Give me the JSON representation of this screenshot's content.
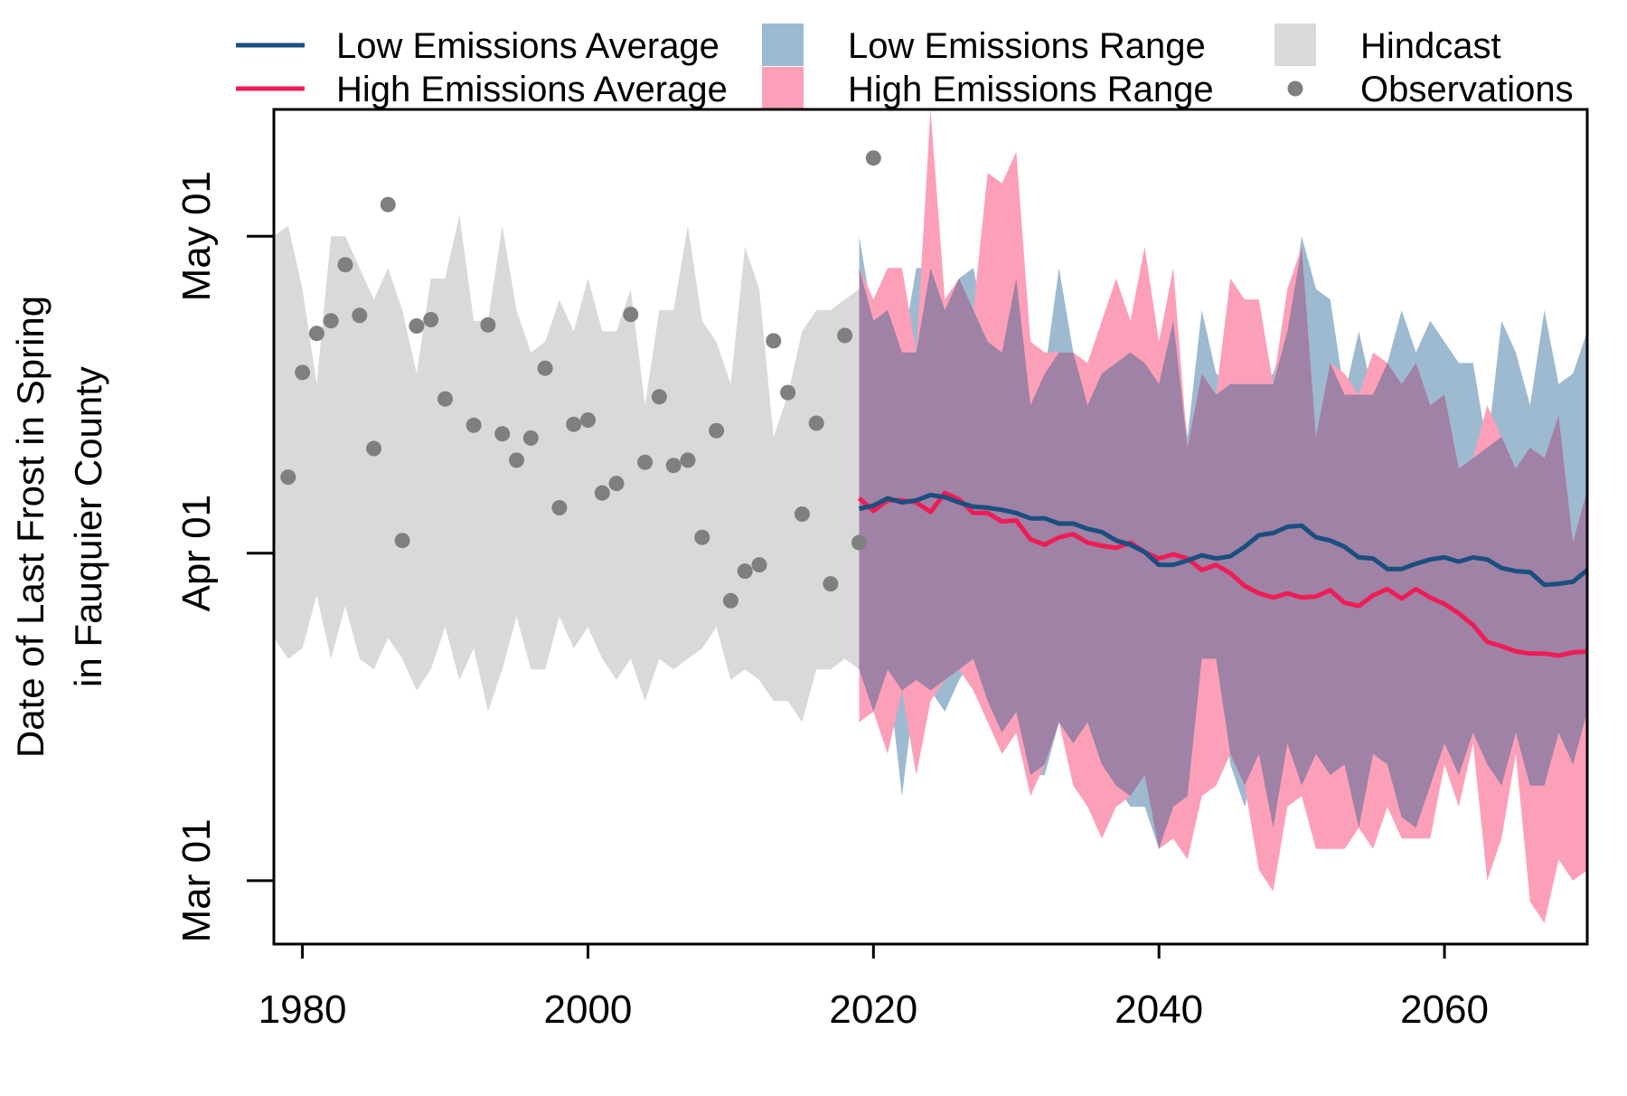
{
  "chart_data": {
    "type": "line",
    "title": "",
    "xlabel": "",
    "ylabel_lines": [
      "Date of Last Frost in Spring",
      "in Fauquier County"
    ],
    "xlim": [
      1978,
      2070
    ],
    "x_ticks": [
      1980,
      2000,
      2020,
      2040,
      2060
    ],
    "x_tick_labels": [
      "1980",
      "2000",
      "2020",
      "2040",
      "2060"
    ],
    "y_unit": "day of year",
    "ylim": [
      54,
      133
    ],
    "y_ticks": [
      60,
      91,
      121
    ],
    "y_tick_labels": [
      "Mar 01",
      "Apr 01",
      "May 01"
    ],
    "grid": false,
    "legend": {
      "placement": "top",
      "items": [
        {
          "key": "low_avg",
          "label": "Low Emissions Average",
          "kind": "line",
          "color": "#1a4f7f"
        },
        {
          "key": "high_avg",
          "label": "High Emissions Average",
          "kind": "line",
          "color": "#ee1d55"
        },
        {
          "key": "low_range",
          "label": "Low Emissions Range",
          "kind": "area",
          "color": "#9dbad0"
        },
        {
          "key": "high_range",
          "label": "High Emissions Range",
          "kind": "area",
          "color": "#fba0b8"
        },
        {
          "key": "hindcast",
          "label": "Hindcast",
          "kind": "area",
          "color": "#d9d9d9"
        },
        {
          "key": "obs",
          "label": "Observations",
          "kind": "point",
          "color": "#7f7f7f"
        }
      ]
    },
    "colors": {
      "low_avg": "#1a4f7f",
      "high_avg": "#ee1d55",
      "low_range": "#9dbad0",
      "high_range": "#fba0b8",
      "overlap": "#9f82a5",
      "hindcast": "#d9d9d9",
      "obs": "#7f7f7f"
    },
    "hindcast": {
      "x": [
        1978,
        1979,
        1980,
        1981,
        1982,
        1983,
        1984,
        1985,
        1986,
        1987,
        1988,
        1989,
        1990,
        1991,
        1992,
        1993,
        1994,
        1995,
        1996,
        1997,
        1998,
        1999,
        2000,
        2001,
        2002,
        2003,
        2004,
        2005,
        2006,
        2007,
        2008,
        2009,
        2010,
        2011,
        2012,
        2013,
        2014,
        2015,
        2016,
        2017,
        2018,
        2019
      ],
      "upper": [
        121,
        122,
        116,
        107,
        121,
        121,
        118,
        115,
        118,
        114,
        108,
        117,
        117,
        123,
        113,
        113,
        122,
        114,
        110,
        111,
        115,
        112,
        117,
        112,
        112,
        116,
        105,
        114,
        114,
        122,
        113,
        111,
        107,
        120,
        116,
        102,
        106,
        112,
        114,
        114,
        115,
        116
      ],
      "lower": [
        83,
        81,
        82,
        87,
        81,
        86,
        81,
        80,
        83,
        81,
        78,
        80,
        84,
        79,
        82,
        76,
        80,
        85,
        80,
        80,
        85,
        82,
        84,
        81,
        79,
        81,
        77,
        81,
        80,
        81,
        82,
        84,
        79,
        80,
        79,
        77,
        77,
        75,
        80,
        80,
        81,
        80
      ]
    },
    "low_range": {
      "x": [
        2019,
        2020,
        2021,
        2022,
        2023,
        2024,
        2025,
        2026,
        2027,
        2028,
        2029,
        2030,
        2031,
        2032,
        2033,
        2034,
        2035,
        2036,
        2037,
        2038,
        2039,
        2040,
        2041,
        2042,
        2043,
        2044,
        2045,
        2046,
        2047,
        2048,
        2049,
        2050,
        2051,
        2052,
        2053,
        2054,
        2055,
        2056,
        2057,
        2058,
        2059,
        2060,
        2061,
        2062,
        2063,
        2064,
        2065,
        2066,
        2067,
        2068,
        2069,
        2070
      ],
      "upper": [
        121,
        113,
        114,
        110,
        118,
        118,
        114,
        117,
        118,
        111,
        110,
        117,
        105,
        108,
        118,
        110,
        105,
        108,
        109,
        110,
        109,
        107,
        113,
        102,
        114,
        108,
        107,
        107,
        107,
        108,
        112,
        121,
        116,
        115,
        106,
        112,
        106,
        109,
        114,
        110,
        113,
        111,
        109,
        109,
        101,
        113,
        110,
        105,
        114,
        107,
        108,
        112
      ],
      "lower": [
        80,
        76,
        80,
        68,
        79,
        78,
        76,
        79,
        81,
        77,
        74,
        76,
        70,
        70,
        75,
        73,
        75,
        71,
        69,
        67,
        67,
        63,
        67,
        68,
        81,
        81,
        71,
        67,
        72,
        65,
        73,
        69,
        72,
        70,
        71,
        65,
        72,
        71,
        66,
        65,
        69,
        73,
        70,
        74,
        71,
        69,
        74,
        69,
        69,
        74,
        71,
        76
      ]
    },
    "high_range": {
      "x": [
        2019,
        2020,
        2021,
        2022,
        2023,
        2024,
        2025,
        2026,
        2027,
        2028,
        2029,
        2030,
        2031,
        2032,
        2033,
        2034,
        2035,
        2036,
        2037,
        2038,
        2039,
        2040,
        2041,
        2042,
        2043,
        2044,
        2045,
        2046,
        2047,
        2048,
        2049,
        2050,
        2051,
        2052,
        2053,
        2054,
        2055,
        2056,
        2057,
        2058,
        2059,
        2060,
        2061,
        2062,
        2063,
        2064,
        2065,
        2066,
        2067,
        2068,
        2069,
        2070
      ],
      "upper": [
        118,
        115,
        118,
        118,
        110,
        133,
        115,
        117,
        114,
        127,
        126,
        129,
        111,
        110,
        110,
        110,
        109,
        113,
        117,
        113,
        120,
        111,
        118,
        101,
        108,
        106,
        117,
        115,
        115,
        107,
        116,
        120,
        102,
        109,
        108,
        106,
        110,
        109,
        107,
        109,
        105,
        106,
        99,
        100,
        105,
        102,
        99,
        101,
        100,
        104,
        92,
        97
      ],
      "lower": [
        75,
        76,
        72,
        78,
        70,
        77,
        79,
        80,
        78,
        75,
        72,
        74,
        68,
        71,
        75,
        69,
        67,
        64,
        67,
        68,
        70,
        63,
        64,
        62,
        68,
        69,
        72,
        69,
        61,
        59,
        67,
        68,
        63,
        63,
        63,
        65,
        63,
        67,
        64,
        64,
        64,
        71,
        67,
        73,
        60,
        64,
        72,
        58,
        56,
        62,
        60,
        61
      ]
    },
    "low_avg": {
      "x": [
        2019,
        2020,
        2021,
        2022,
        2023,
        2024,
        2025,
        2026,
        2027,
        2028,
        2029,
        2030,
        2031,
        2032,
        2033,
        2034,
        2035,
        2036,
        2037,
        2038,
        2039,
        2040,
        2041,
        2042,
        2043,
        2044,
        2045,
        2046,
        2047,
        2048,
        2049,
        2050,
        2051,
        2052,
        2053,
        2054,
        2055,
        2056,
        2057,
        2058,
        2059,
        2060,
        2061,
        2062,
        2063,
        2064,
        2065,
        2066,
        2067,
        2068,
        2069,
        2070
      ],
      "values": [
        95.2,
        95.5,
        96.2,
        95.8,
        96.0,
        96.5,
        96.3,
        95.8,
        95.4,
        95.3,
        95.1,
        94.8,
        94.3,
        94.3,
        93.8,
        93.8,
        93.3,
        93.0,
        92.2,
        91.8,
        91.1,
        89.9,
        89.9,
        90.3,
        90.8,
        90.5,
        90.7,
        91.6,
        92.7,
        92.9,
        93.5,
        93.6,
        92.5,
        92.2,
        91.6,
        90.6,
        90.5,
        89.5,
        89.5,
        90.0,
        90.4,
        90.6,
        90.2,
        90.6,
        90.4,
        89.6,
        89.3,
        89.2,
        88.0,
        88.1,
        88.3,
        89.4
      ]
    },
    "high_avg": {
      "x": [
        2019,
        2020,
        2021,
        2022,
        2023,
        2024,
        2025,
        2026,
        2027,
        2028,
        2029,
        2030,
        2031,
        2032,
        2033,
        2034,
        2035,
        2036,
        2037,
        2038,
        2039,
        2040,
        2041,
        2042,
        2043,
        2044,
        2045,
        2046,
        2047,
        2048,
        2049,
        2050,
        2051,
        2052,
        2053,
        2054,
        2055,
        2056,
        2057,
        2058,
        2059,
        2060,
        2061,
        2062,
        2063,
        2064,
        2065,
        2066,
        2067,
        2068,
        2069,
        2070
      ],
      "values": [
        96.2,
        95.0,
        96.0,
        96.0,
        95.8,
        94.9,
        96.7,
        96.1,
        94.8,
        94.8,
        94.0,
        94.1,
        92.3,
        91.8,
        92.5,
        92.8,
        92.0,
        91.7,
        91.5,
        92.0,
        91.1,
        90.5,
        90.9,
        90.5,
        89.4,
        89.9,
        89.1,
        87.9,
        87.2,
        86.8,
        87.2,
        86.8,
        86.9,
        87.5,
        86.3,
        86.0,
        87.0,
        87.6,
        86.7,
        87.6,
        86.8,
        86.2,
        85.3,
        84.2,
        82.6,
        82.2,
        81.7,
        81.5,
        81.5,
        81.3,
        81.6,
        81.7
      ]
    },
    "observations": {
      "x": [
        1979,
        1980,
        1981,
        1982,
        1983,
        1984,
        1985,
        1986,
        1987,
        1988,
        1989,
        1990,
        1992,
        1993,
        1994,
        1995,
        1996,
        1997,
        1998,
        1999,
        2000,
        2001,
        2002,
        2003,
        2004,
        2005,
        2006,
        2007,
        2008,
        2009,
        2010,
        2011,
        2012,
        2013,
        2014,
        2015,
        2016,
        2017,
        2018,
        2019,
        2020
      ],
      "values": [
        98.2,
        108.1,
        111.8,
        113.0,
        118.3,
        113.5,
        100.9,
        124.0,
        92.2,
        112.5,
        113.1,
        105.6,
        103.1,
        112.6,
        102.3,
        99.8,
        101.9,
        108.5,
        95.3,
        103.2,
        103.6,
        96.7,
        97.6,
        113.6,
        99.6,
        105.8,
        99.3,
        99.8,
        92.5,
        102.6,
        86.5,
        89.3,
        89.9,
        111.1,
        106.2,
        94.7,
        103.3,
        88.1,
        111.6,
        92.0,
        128.4
      ]
    }
  }
}
